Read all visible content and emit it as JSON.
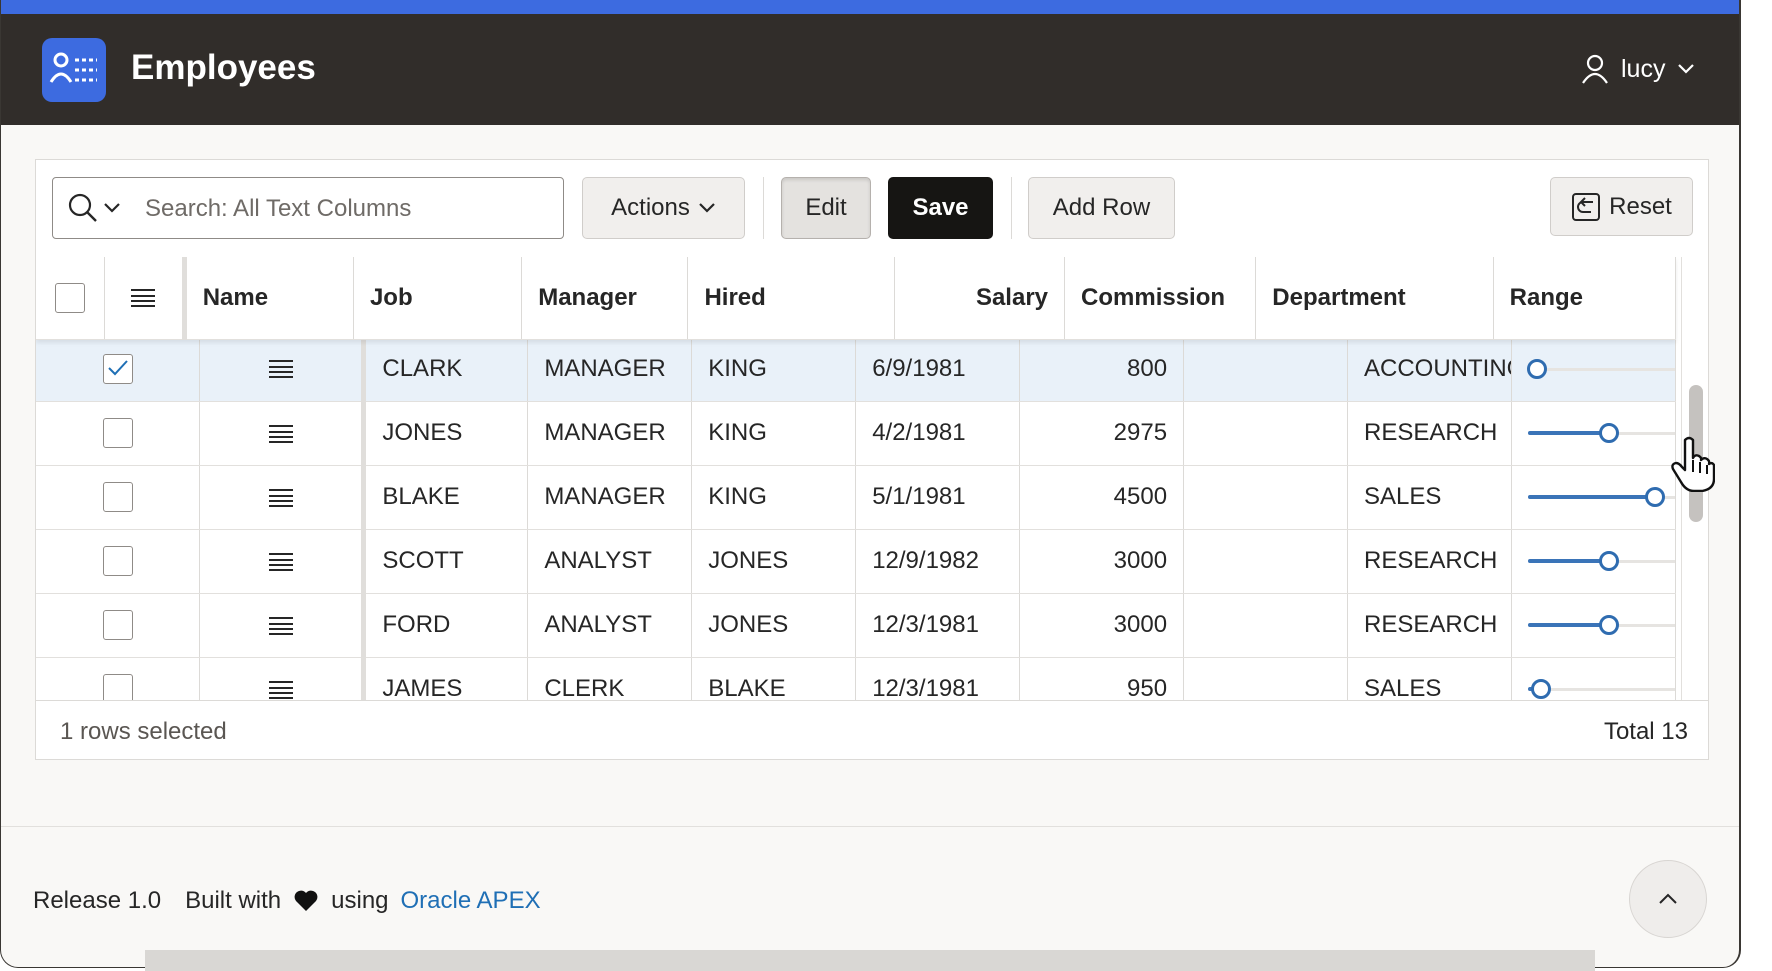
{
  "app": {
    "title": "Employees",
    "user": "lucy"
  },
  "toolbar": {
    "search_placeholder": "Search: All Text Columns",
    "actions_label": "Actions",
    "edit_label": "Edit",
    "save_label": "Save",
    "add_row_label": "Add Row",
    "reset_label": "Reset"
  },
  "columns": [
    "Name",
    "Job",
    "Manager",
    "Hired",
    "Salary",
    "Commission",
    "Department",
    "Range"
  ],
  "rows": [
    {
      "name": "CLARK",
      "job": "MANAGER",
      "manager": "KING",
      "hired": "6/9/1981",
      "salary": "800",
      "commission": "",
      "department": "ACCOUNTING",
      "range": 0.06,
      "selected": true
    },
    {
      "name": "JONES",
      "job": "MANAGER",
      "manager": "KING",
      "hired": "4/2/1981",
      "salary": "2975",
      "commission": "",
      "department": "RESEARCH",
      "range": 0.55,
      "selected": false
    },
    {
      "name": "BLAKE",
      "job": "MANAGER",
      "manager": "KING",
      "hired": "5/1/1981",
      "salary": "4500",
      "commission": "",
      "department": "SALES",
      "range": 0.86,
      "selected": false
    },
    {
      "name": "SCOTT",
      "job": "ANALYST",
      "manager": "JONES",
      "hired": "12/9/1982",
      "salary": "3000",
      "commission": "",
      "department": "RESEARCH",
      "range": 0.55,
      "selected": false
    },
    {
      "name": "FORD",
      "job": "ANALYST",
      "manager": "JONES",
      "hired": "12/3/1981",
      "salary": "3000",
      "commission": "",
      "department": "RESEARCH",
      "range": 0.55,
      "selected": false
    },
    {
      "name": "JAMES",
      "job": "CLERK",
      "manager": "BLAKE",
      "hired": "12/3/1981",
      "salary": "950",
      "commission": "",
      "department": "SALES",
      "range": 0.09,
      "selected": false
    }
  ],
  "grid_footer": {
    "rows_selected": "1 rows selected",
    "total": "Total 13"
  },
  "footer": {
    "release": "Release 1.0",
    "built_with": "Built with",
    "using": "using",
    "link": "Oracle APEX"
  },
  "colors": {
    "accent": "#3d6be0",
    "header_bg": "#312d2a",
    "save_bg": "#161513",
    "link": "#1f6fb5",
    "selected_row": "#e9f1f9"
  }
}
